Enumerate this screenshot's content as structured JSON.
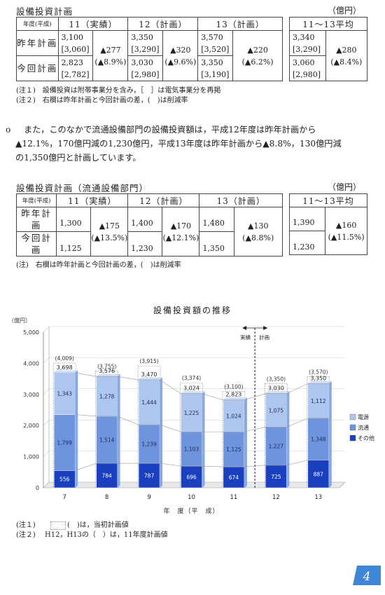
{
  "section1": {
    "title": "設備投資計画",
    "unit": "（億円）",
    "headers": {
      "label": "年度(平成)",
      "c11": "11（実績）",
      "c12": "12（計画）",
      "c13": "13（計画）",
      "avg": "11〜13平均"
    },
    "rows": [
      {
        "label": "昨年計画",
        "y11": "3,100",
        "y11b": "[3,060]",
        "y12": "3,350",
        "y12b": "[3,290]",
        "y13": "3,570",
        "y13b": "[3,520]",
        "avg": "3,340",
        "avgb": "[3,290]"
      },
      {
        "label": "今回計画",
        "y11": "2,823",
        "y11b": "[2,782]",
        "y12": "3,030",
        "y12b": "[2,980]",
        "y13": "3,350",
        "y13b": "[3,190]",
        "avg": "3,060",
        "avgb": "[2,980]"
      }
    ],
    "diffs": {
      "d11": "▲277",
      "d11p": "(▲8.9%)",
      "d12": "▲320",
      "d12p": "(▲9.6%)",
      "d13": "▲220",
      "d13p": "(▲6.2%)",
      "davg": "▲280",
      "davgp": "(▲8.4%)"
    },
    "notes": [
      "(注１)　設備投資は附帯事業分を含み，［　］は電気事業分を再掲",
      "(注２)　右欄は昨年計画と今回計画の差，(　)は削減率"
    ]
  },
  "paragraph": {
    "bullet": "o",
    "lines": [
      "また，このなかで流通設備部門の設備投資額は，平成12年度は昨年計画から",
      "▲12.1%，170億円減の1,230億円，平成13年度は昨年計画から▲8.8%，130億円減",
      "の1,350億円と計画しています。"
    ]
  },
  "section2": {
    "title": "設備投資計画（流通設備部門）",
    "unit": "（億円）",
    "headers": {
      "label": "年度(平成)",
      "c11": "11（実績）",
      "c12": "12（計画）",
      "c13": "13（計画）",
      "avg": "11〜13平均"
    },
    "rows": [
      {
        "label": "昨年計画",
        "y11": "1,300",
        "y12": "1,400",
        "y13": "1,480",
        "avg": "1,390"
      },
      {
        "label": "今回計画",
        "y11": "1,125",
        "y12": "1,230",
        "y13": "1,350",
        "avg": "1,230"
      }
    ],
    "diffs": {
      "d11": "▲175",
      "d11p": "(▲13.5%)",
      "d12": "▲170",
      "d12p": "(▲12.1%)",
      "d13": "▲130",
      "d13p": "(▲8.8%)",
      "davg": "▲160",
      "davgp": "(▲11.5%)"
    },
    "note": "(注)　右欄は昨年計画と今回計画の差，(　)は削減率"
  },
  "chart_data": {
    "type": "bar",
    "title": "設備投資額の推移",
    "ylabel": "（億円）",
    "xlabel": "年　度（平　成）",
    "ylim": [
      0,
      5000
    ],
    "yticks": [
      0,
      1000,
      2000,
      3000,
      4000,
      5000
    ],
    "ytick_labels": [
      "0",
      "1,000",
      "2,000",
      "3,000",
      "4,000",
      "5,000"
    ],
    "categories": [
      "7",
      "8",
      "9",
      "10",
      "11",
      "12",
      "13"
    ],
    "series": [
      {
        "name": "その他",
        "values": [
          556,
          784,
          787,
          696,
          674,
          725,
          887
        ],
        "labels": [
          "556",
          "784",
          "787",
          "696",
          "674",
          "725",
          "887"
        ],
        "color": "#1a3fbf"
      },
      {
        "name": "流通",
        "values": [
          1799,
          1514,
          1239,
          1103,
          1125,
          1227,
          1348
        ],
        "labels": [
          "1,799",
          "1,514",
          "1,239",
          "1,103",
          "1,125",
          "1,227",
          "1,348"
        ],
        "color": "#6f94de"
      },
      {
        "name": "電源",
        "values": [
          1343,
          1278,
          1444,
          1225,
          1024,
          1075,
          1112
        ],
        "labels": [
          "1,343",
          "1,278",
          "1,444",
          "1,225",
          "1,024",
          "1,075",
          "1,112"
        ],
        "color": "#aec6ee"
      }
    ],
    "totals": [
      3698,
      3576,
      3470,
      3024,
      2823,
      3030,
      3350
    ],
    "total_labels": [
      "3,698",
      "3,576",
      "3,470",
      "3,024",
      "2,823",
      "3,030",
      "3,350"
    ],
    "initial_plan": [
      4009,
      3755,
      3915,
      3374,
      3100,
      3350,
      3570
    ],
    "initial_plan_labels": [
      "(4,009)",
      "(3,755)",
      "(3,915)",
      "(3,374)",
      "(3,100)",
      "(3,350)",
      "(3,570)"
    ],
    "divider": {
      "after_category": "11",
      "left_label": "実績",
      "right_label": "計画"
    },
    "legend": {
      "position": "right",
      "entries": [
        "電源",
        "流通",
        "その他"
      ]
    }
  },
  "chart_notes": [
    {
      "prefix": "(注１)",
      "text": "(　)は，当初計画値"
    },
    {
      "prefix": "(注２)",
      "text": "H12，H13の（　）は，11年度計画値"
    }
  ],
  "page_number": "4",
  "colors": {
    "badge": "#3f86d6"
  }
}
